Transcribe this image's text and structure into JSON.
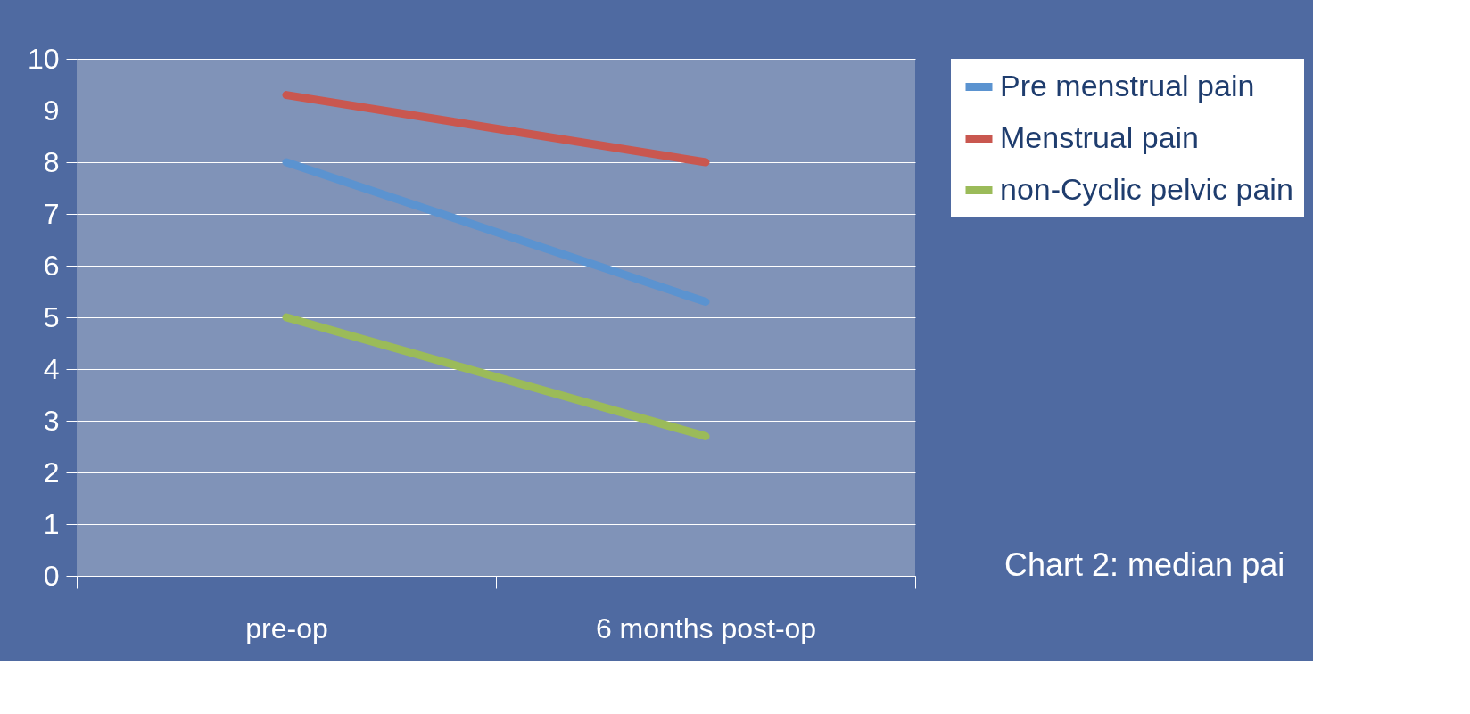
{
  "chart_data": {
    "type": "line",
    "categories": [
      "pre-op",
      "6 months post-op"
    ],
    "series": [
      {
        "name": "Pre menstrual pain",
        "color": "#5b93d0",
        "values": [
          8,
          5.3
        ]
      },
      {
        "name": "Menstrual pain",
        "color": "#c9574f",
        "values": [
          9.3,
          8
        ]
      },
      {
        "name": "non-Cyclic pelvic pain",
        "color": "#9bbb59",
        "values": [
          5,
          2.7
        ]
      }
    ],
    "ylim": [
      0,
      10
    ],
    "yticks": [
      0,
      1,
      2,
      3,
      4,
      5,
      6,
      7,
      8,
      9,
      10
    ],
    "grid": "y",
    "legend": "top right",
    "marker": "none",
    "line_style": "solid",
    "annotations": [
      "Chart 2: median pai"
    ]
  }
}
